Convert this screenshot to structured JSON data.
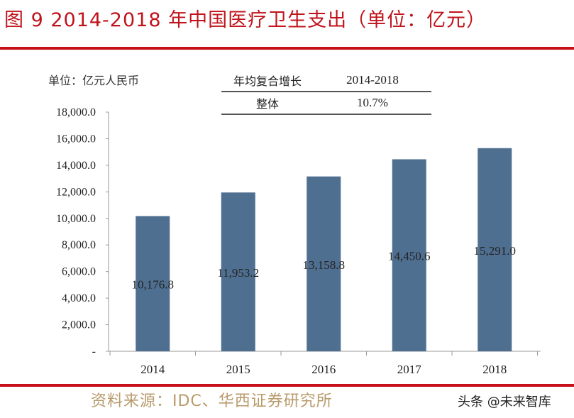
{
  "title": "图 9 2014-2018 年中国医疗卫生支出（单位：亿元）",
  "unit_label": "单位：亿元人民币",
  "cagr_table": {
    "header": [
      "年均复合增长",
      "2014-2018"
    ],
    "rows": [
      [
        "整体",
        "10.7%"
      ]
    ]
  },
  "source": "资料来源：IDC、华西证券研究所",
  "watermark": "头条 @未来智库",
  "colors": {
    "bar": "#4f6f91",
    "accent": "#c8101a",
    "source": "#b89a6a"
  },
  "chart_data": {
    "type": "bar",
    "categories": [
      "2014",
      "2015",
      "2016",
      "2017",
      "2018"
    ],
    "values": [
      10176.8,
      11953.2,
      13158.8,
      14450.6,
      15291.0
    ],
    "data_labels": [
      "10,176.8",
      "11,953.2",
      "13,158.8",
      "14,450.6",
      "15,291.0"
    ],
    "ylim": [
      0,
      18000
    ],
    "yticks": [
      0,
      2000,
      4000,
      6000,
      8000,
      10000,
      12000,
      14000,
      16000,
      18000
    ],
    "ytick_labels": [
      "-",
      "2,000.0",
      "4,000.0",
      "6,000.0",
      "8,000.0",
      "10,000.0",
      "12,000.0",
      "14,000.0",
      "16,000.0",
      "18,000.0"
    ],
    "grid": false,
    "legend": "none"
  }
}
